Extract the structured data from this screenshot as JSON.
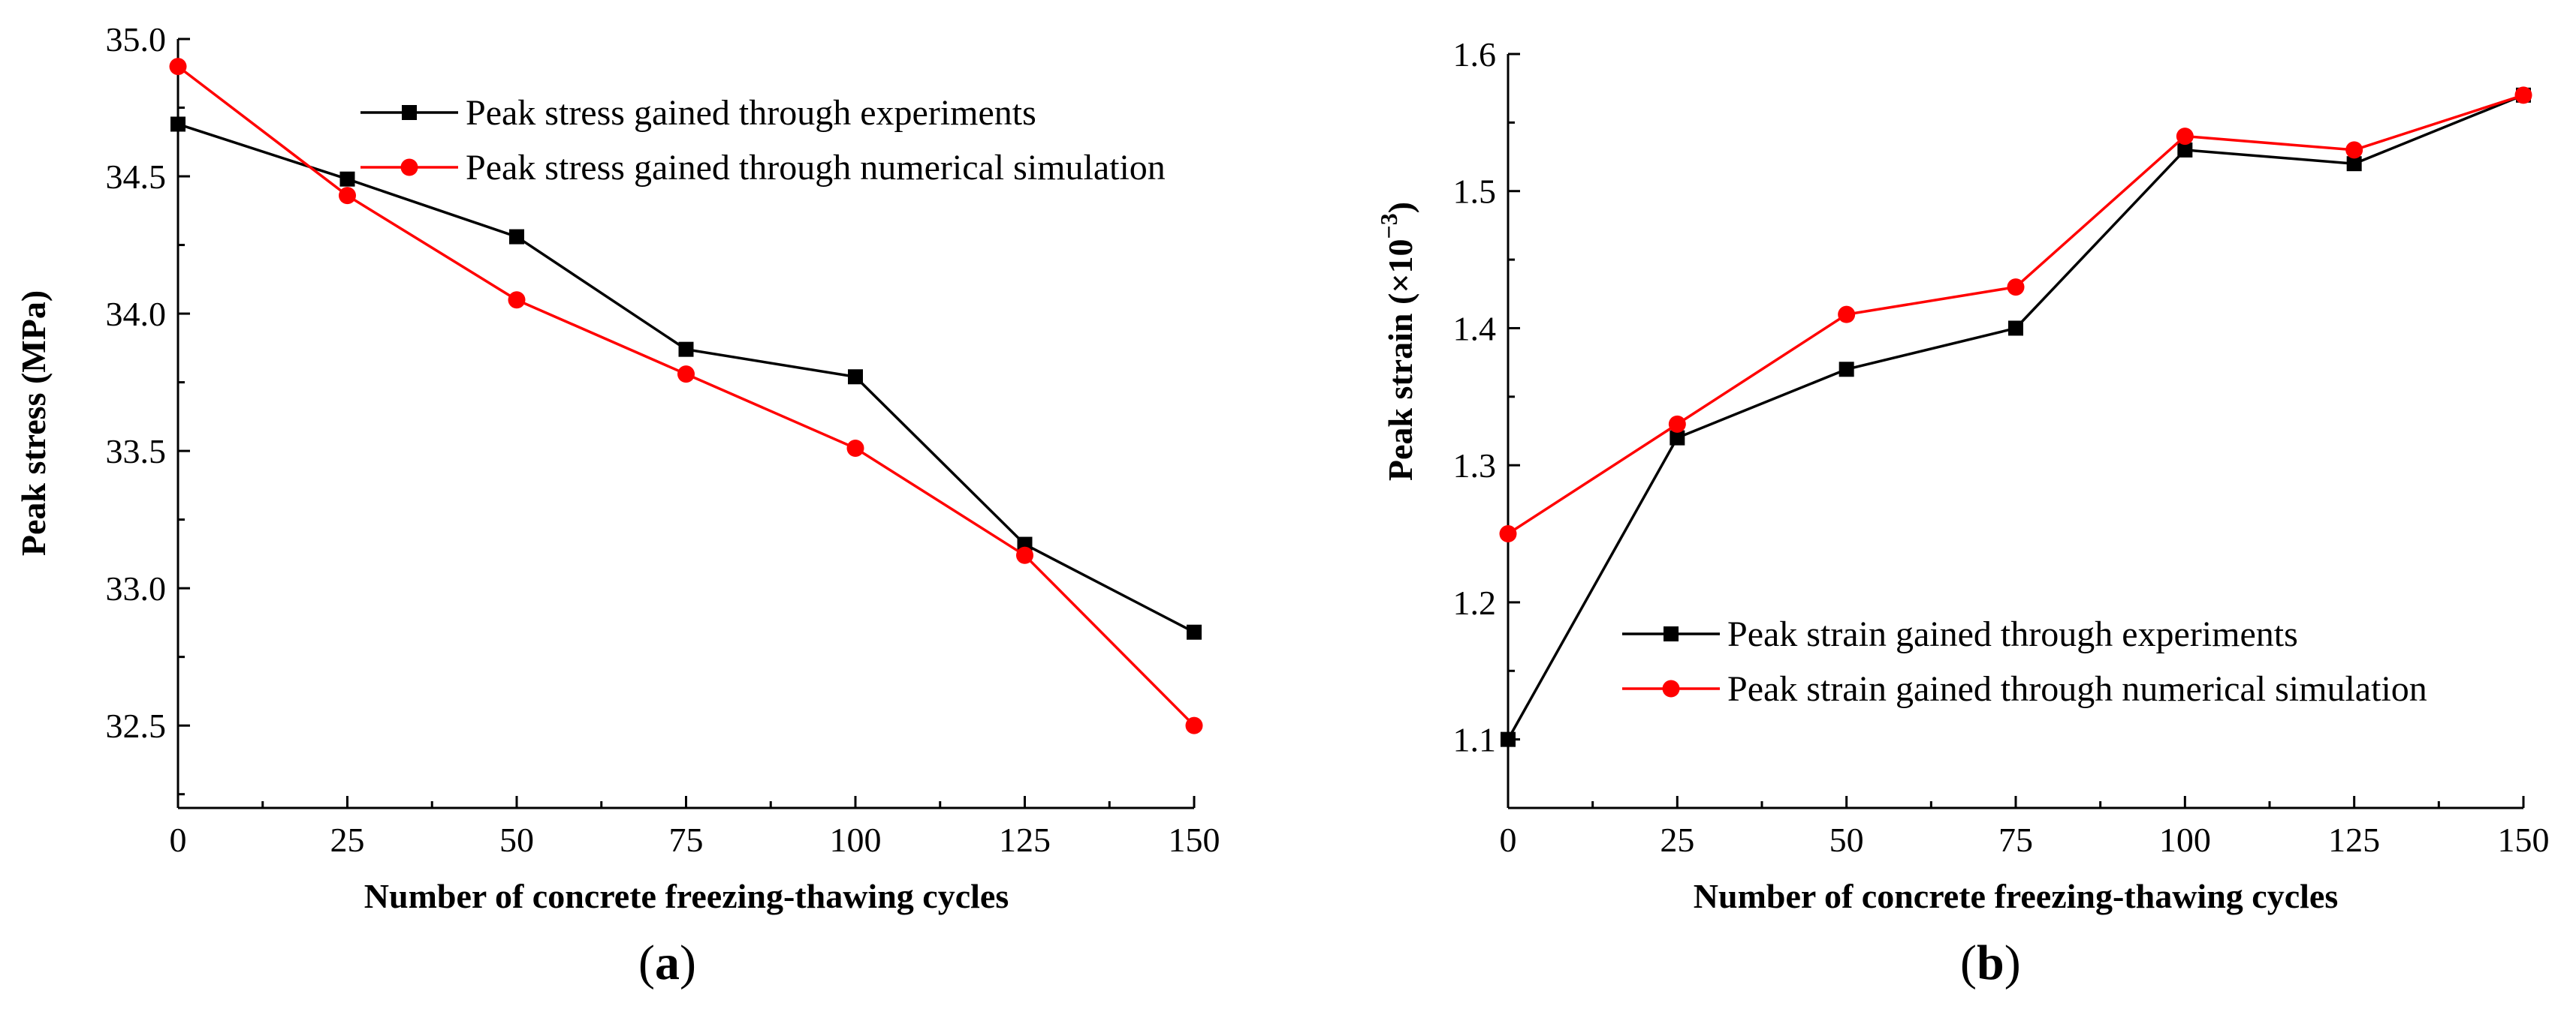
{
  "chart_data": [
    {
      "type": "line",
      "panel_label": "a",
      "xlabel": "Number of concrete freezing-thawing cycles",
      "ylabel": "Peak stress (MPa)",
      "xlim": [
        0,
        150
      ],
      "ylim": [
        32.2,
        35.0
      ],
      "x_ticks": [
        0,
        25,
        50,
        75,
        100,
        125,
        150
      ],
      "y_ticks": [
        32.5,
        33.0,
        33.5,
        34.0,
        34.5,
        35.0
      ],
      "y_tick_format": 1,
      "x": [
        0,
        25,
        50,
        75,
        100,
        125,
        150
      ],
      "legend_position": "top-center",
      "grid": false,
      "series": [
        {
          "name": "Peak stress gained through experiments",
          "color": "#000000",
          "marker": "square",
          "values": [
            34.69,
            34.49,
            34.28,
            33.87,
            33.77,
            33.16,
            32.84
          ]
        },
        {
          "name": "Peak stress gained through numerical simulation",
          "color": "#ff0000",
          "marker": "circle",
          "values": [
            34.9,
            34.43,
            34.05,
            33.78,
            33.51,
            33.12,
            32.5
          ]
        }
      ]
    },
    {
      "type": "line",
      "panel_label": "b",
      "xlabel": "Number of concrete freezing-thawing cycles",
      "ylabel": "Peak strain (×10",
      "ylabel_superscript": "−3",
      "ylabel_suffix": ")",
      "xlim": [
        0,
        150
      ],
      "ylim": [
        1.05,
        1.6
      ],
      "x_ticks": [
        0,
        25,
        50,
        75,
        100,
        125,
        150
      ],
      "y_ticks": [
        1.1,
        1.2,
        1.3,
        1.4,
        1.5,
        1.6
      ],
      "y_tick_format": 1,
      "x": [
        0,
        25,
        50,
        75,
        100,
        125,
        150
      ],
      "legend_position": "bottom-right",
      "grid": false,
      "series": [
        {
          "name": "Peak strain gained through experiments",
          "color": "#000000",
          "marker": "square",
          "values": [
            1.1,
            1.32,
            1.37,
            1.4,
            1.53,
            1.52,
            1.57
          ]
        },
        {
          "name": "Peak strain gained through numerical simulation",
          "color": "#ff0000",
          "marker": "circle",
          "values": [
            1.25,
            1.33,
            1.41,
            1.43,
            1.54,
            1.53,
            1.57
          ]
        }
      ]
    }
  ]
}
